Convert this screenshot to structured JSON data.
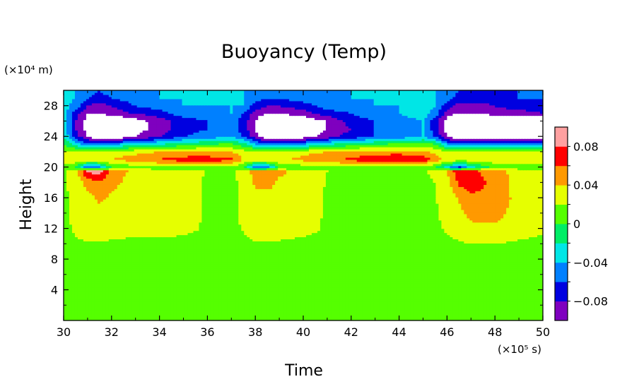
{
  "chart_data": {
    "type": "heatmap",
    "title": "Buoyancy (Temp)",
    "xlabel": "Time",
    "ylabel": "Height",
    "x_unit": "(×10⁵ s)",
    "y_unit": "(×10⁴ m)",
    "xlim": [
      30,
      50
    ],
    "ylim": [
      0,
      30
    ],
    "x_ticks": [
      "30",
      "32",
      "34",
      "36",
      "38",
      "40",
      "42",
      "44",
      "46",
      "48",
      "50"
    ],
    "y_ticks": [
      "4",
      "8",
      "12",
      "16",
      "20",
      "24",
      "28"
    ],
    "x_tick_values": [
      30,
      32,
      34,
      36,
      38,
      40,
      42,
      44,
      46,
      48,
      50
    ],
    "y_tick_values": [
      4,
      8,
      12,
      16,
      20,
      24,
      28
    ],
    "colorbar": {
      "min": -0.1,
      "max": 0.1,
      "step": 0.02,
      "labels": [
        "0.08",
        "0.04",
        "0",
        "−0.04",
        "−0.08"
      ],
      "label_values": [
        0.08,
        0.04,
        0,
        -0.04,
        -0.08
      ],
      "colors": [
        "#7f00bf",
        "#0000e0",
        "#0080ff",
        "#00e6e6",
        "#00ee66",
        "#55ff00",
        "#e6ff00",
        "#ff9900",
        "#ff0000",
        "#ffa0a0"
      ]
    },
    "field": {
      "description": "buoyancy contours; values estimated from colour bands",
      "x": [
        30,
        30.5,
        31,
        31.5,
        32,
        33,
        34,
        35,
        36,
        37,
        37.5,
        38,
        38.5,
        39,
        40,
        41,
        42,
        43,
        44,
        45,
        45.5,
        46,
        46.5,
        47,
        48,
        49,
        50
      ],
      "y": [
        0,
        2,
        4,
        6,
        8,
        10,
        12,
        14,
        16,
        18,
        19.5,
        20,
        21,
        22,
        23,
        24,
        25,
        26,
        27,
        28,
        29,
        30
      ],
      "values": [
        [
          0.005,
          0.01,
          0.015,
          0.012,
          0.01,
          0.01,
          0.012,
          0.01,
          0.008,
          0.008,
          0.01,
          0.012,
          0.012,
          0.012,
          0.01,
          0.008,
          0.008,
          0.008,
          0.006,
          0.006,
          0.006,
          0.008,
          0.01,
          0.012,
          0.012,
          0.01,
          0.01
        ],
        [
          0.005,
          0.012,
          0.015,
          0.015,
          0.012,
          0.01,
          0.01,
          0.01,
          0.008,
          0.008,
          0.012,
          0.014,
          0.014,
          0.012,
          0.01,
          0.008,
          0.008,
          0.008,
          0.006,
          0.006,
          0.006,
          0.01,
          0.012,
          0.014,
          0.012,
          0.01,
          0.01
        ],
        [
          0.008,
          0.012,
          0.015,
          0.015,
          0.015,
          0.012,
          0.01,
          0.01,
          0.008,
          0.008,
          0.012,
          0.016,
          0.016,
          0.014,
          0.012,
          0.01,
          0.008,
          0.008,
          0.008,
          0.006,
          0.008,
          0.012,
          0.014,
          0.015,
          0.014,
          0.012,
          0.012
        ],
        [
          0.01,
          0.015,
          0.018,
          0.018,
          0.016,
          0.014,
          0.012,
          0.01,
          0.01,
          0.01,
          0.014,
          0.016,
          0.016,
          0.014,
          0.012,
          0.01,
          0.01,
          0.008,
          0.008,
          0.008,
          0.01,
          0.012,
          0.015,
          0.016,
          0.016,
          0.014,
          0.014
        ],
        [
          0.015,
          0.018,
          0.019,
          0.019,
          0.018,
          0.015,
          0.014,
          0.012,
          0.012,
          0.012,
          0.016,
          0.018,
          0.018,
          0.016,
          0.014,
          0.012,
          0.012,
          0.01,
          0.01,
          0.01,
          0.012,
          0.014,
          0.016,
          0.017,
          0.017,
          0.016,
          0.016
        ],
        [
          0.016,
          0.018,
          0.019,
          0.019,
          0.018,
          0.016,
          0.016,
          0.015,
          0.014,
          0.014,
          0.017,
          0.019,
          0.019,
          0.018,
          0.016,
          0.015,
          0.014,
          0.014,
          0.013,
          0.012,
          0.014,
          0.016,
          0.018,
          0.019,
          0.019,
          0.018,
          0.017
        ],
        [
          0.016,
          0.022,
          0.025,
          0.025,
          0.025,
          0.025,
          0.025,
          0.024,
          0.018,
          0.017,
          0.021,
          0.026,
          0.026,
          0.026,
          0.025,
          0.018,
          0.017,
          0.017,
          0.016,
          0.015,
          0.017,
          0.022,
          0.028,
          0.035,
          0.036,
          0.025,
          0.022
        ],
        [
          0.017,
          0.024,
          0.03,
          0.03,
          0.03,
          0.03,
          0.03,
          0.026,
          0.018,
          0.017,
          0.022,
          0.028,
          0.028,
          0.028,
          0.027,
          0.018,
          0.017,
          0.017,
          0.017,
          0.017,
          0.018,
          0.025,
          0.035,
          0.045,
          0.048,
          0.03,
          0.022
        ],
        [
          0.017,
          0.025,
          0.032,
          0.045,
          0.036,
          0.03,
          0.03,
          0.026,
          0.018,
          0.017,
          0.023,
          0.03,
          0.03,
          0.03,
          0.028,
          0.018,
          0.017,
          0.017,
          0.017,
          0.017,
          0.019,
          0.027,
          0.042,
          0.055,
          0.055,
          0.032,
          0.022
        ],
        [
          0.017,
          0.026,
          0.048,
          0.055,
          0.045,
          0.032,
          0.03,
          0.026,
          0.018,
          0.017,
          0.023,
          0.045,
          0.05,
          0.035,
          0.03,
          0.019,
          0.018,
          0.018,
          0.018,
          0.018,
          0.02,
          0.03,
          0.065,
          0.07,
          0.055,
          0.03,
          0.022
        ],
        [
          0.017,
          0.028,
          0.085,
          0.09,
          0.05,
          0.035,
          0.03,
          0.027,
          0.019,
          0.018,
          0.024,
          0.05,
          0.06,
          0.045,
          0.03,
          0.02,
          0.019,
          0.019,
          0.019,
          0.019,
          0.022,
          0.04,
          0.075,
          0.065,
          0.05,
          0.03,
          0.022
        ],
        [
          0.01,
          0.0,
          -0.06,
          -0.05,
          0.0,
          0.01,
          0.01,
          0.01,
          0.01,
          0.01,
          0.0,
          -0.06,
          -0.05,
          0.0,
          0.01,
          0.01,
          0.01,
          0.01,
          0.01,
          0.01,
          0.0,
          -0.03,
          -0.07,
          -0.03,
          0.01,
          0.01,
          0.01
        ],
        [
          0.03,
          0.035,
          0.035,
          0.036,
          0.04,
          0.05,
          0.062,
          0.07,
          0.072,
          0.065,
          0.04,
          0.035,
          0.035,
          0.037,
          0.045,
          0.055,
          0.065,
          0.075,
          0.085,
          0.075,
          0.05,
          0.035,
          0.03,
          0.03,
          0.03,
          0.03,
          0.03
        ],
        [
          0.025,
          0.03,
          0.03,
          0.03,
          0.03,
          0.035,
          0.04,
          0.045,
          0.045,
          0.04,
          0.03,
          0.03,
          0.03,
          0.03,
          0.035,
          0.04,
          0.045,
          0.05,
          0.05,
          0.045,
          0.035,
          0.03,
          0.03,
          0.03,
          0.03,
          0.03,
          0.03
        ],
        [
          0.0,
          -0.03,
          -0.05,
          -0.05,
          -0.04,
          -0.03,
          -0.02,
          -0.01,
          0.0,
          0.005,
          -0.01,
          -0.04,
          -0.05,
          -0.05,
          -0.04,
          -0.02,
          -0.01,
          0.0,
          0.005,
          0.01,
          0.0,
          -0.04,
          -0.05,
          -0.05,
          -0.05,
          -0.04,
          -0.04
        ],
        [
          -0.02,
          -0.07,
          -0.1,
          -0.12,
          -0.12,
          -0.1,
          -0.08,
          -0.06,
          -0.05,
          -0.04,
          -0.06,
          -0.09,
          -0.12,
          -0.12,
          -0.11,
          -0.09,
          -0.07,
          -0.06,
          -0.05,
          -0.04,
          -0.06,
          -0.1,
          -0.12,
          -0.13,
          -0.13,
          -0.12,
          -0.11
        ],
        [
          -0.03,
          -0.08,
          -0.11,
          -0.14,
          -0.14,
          -0.11,
          -0.09,
          -0.07,
          -0.06,
          -0.05,
          -0.07,
          -0.1,
          -0.14,
          -0.14,
          -0.12,
          -0.1,
          -0.08,
          -0.06,
          -0.05,
          -0.04,
          -0.07,
          -0.11,
          -0.14,
          -0.15,
          -0.15,
          -0.14,
          -0.13
        ],
        [
          -0.03,
          -0.08,
          -0.11,
          -0.13,
          -0.13,
          -0.11,
          -0.09,
          -0.07,
          -0.06,
          -0.05,
          -0.07,
          -0.1,
          -0.13,
          -0.13,
          -0.12,
          -0.1,
          -0.07,
          -0.06,
          -0.05,
          -0.04,
          -0.07,
          -0.11,
          -0.14,
          -0.15,
          -0.15,
          -0.14,
          -0.13
        ],
        [
          -0.03,
          -0.07,
          -0.1,
          -0.1,
          -0.09,
          -0.08,
          -0.07,
          -0.05,
          -0.05,
          -0.04,
          -0.06,
          -0.09,
          -0.1,
          -0.1,
          -0.09,
          -0.07,
          -0.06,
          -0.05,
          -0.04,
          -0.03,
          -0.05,
          -0.09,
          -0.1,
          -0.1,
          -0.09,
          -0.09,
          -0.08
        ],
        [
          -0.03,
          -0.05,
          -0.08,
          -0.09,
          -0.08,
          -0.06,
          -0.05,
          -0.04,
          -0.04,
          -0.04,
          -0.04,
          -0.07,
          -0.08,
          -0.08,
          -0.07,
          -0.05,
          -0.05,
          -0.04,
          -0.04,
          -0.03,
          -0.04,
          -0.07,
          -0.09,
          -0.09,
          -0.08,
          -0.07,
          -0.07
        ],
        [
          -0.03,
          -0.04,
          -0.06,
          -0.07,
          -0.06,
          -0.05,
          -0.04,
          -0.04,
          -0.04,
          -0.04,
          -0.04,
          -0.05,
          -0.06,
          -0.06,
          -0.05,
          -0.05,
          -0.04,
          -0.04,
          -0.04,
          -0.03,
          -0.04,
          -0.05,
          -0.07,
          -0.07,
          -0.07,
          -0.06,
          -0.06
        ],
        [
          -0.03,
          -0.04,
          -0.05,
          -0.06,
          -0.05,
          -0.05,
          -0.04,
          -0.04,
          -0.04,
          -0.04,
          -0.04,
          -0.05,
          -0.05,
          -0.05,
          -0.05,
          -0.04,
          -0.04,
          -0.04,
          -0.04,
          -0.03,
          -0.04,
          -0.05,
          -0.06,
          -0.06,
          -0.06,
          -0.06,
          -0.06
        ]
      ]
    }
  }
}
